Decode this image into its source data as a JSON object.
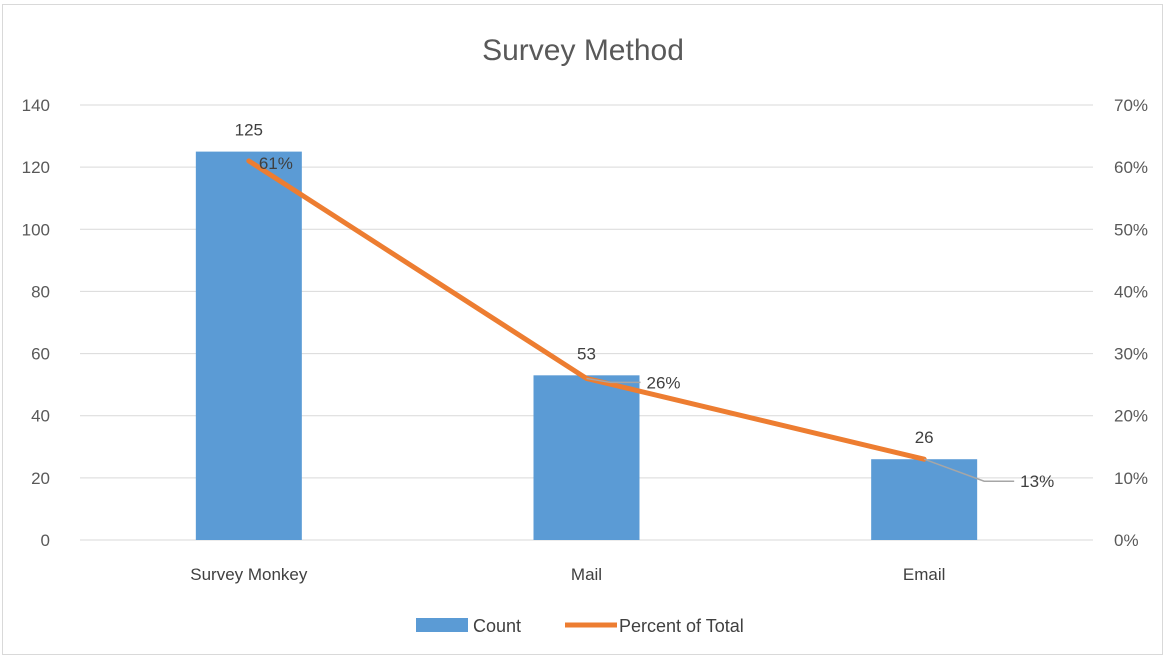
{
  "chart_data": {
    "type": "bar",
    "title": "Survey Method",
    "categories": [
      "Survey Monkey",
      "Mail",
      "Email"
    ],
    "series": [
      {
        "name": "Count",
        "type": "bar",
        "axis": "left",
        "values": [
          125,
          53,
          26
        ],
        "labels": [
          "125",
          "53",
          "26"
        ],
        "color": "#5b9bd5"
      },
      {
        "name": "Percent of Total",
        "type": "line",
        "axis": "right",
        "values": [
          61,
          26,
          13
        ],
        "labels": [
          "61%",
          "26%",
          "13%"
        ],
        "color": "#ed7d31"
      }
    ],
    "y_left": {
      "min": 0,
      "max": 140,
      "ticks": [
        "0",
        "20",
        "40",
        "60",
        "80",
        "100",
        "120",
        "140"
      ],
      "values": [
        0,
        20,
        40,
        60,
        80,
        100,
        120,
        140
      ]
    },
    "y_right": {
      "min": 0,
      "max": 70,
      "ticks": [
        "0%",
        "10%",
        "20%",
        "30%",
        "40%",
        "50%",
        "60%",
        "70%"
      ],
      "values": [
        0,
        10,
        20,
        30,
        40,
        50,
        60,
        70
      ]
    },
    "grid": true,
    "legend": "bottom",
    "grid_color": "#d9d9d9",
    "leader_color": "#a6a6a6"
  }
}
